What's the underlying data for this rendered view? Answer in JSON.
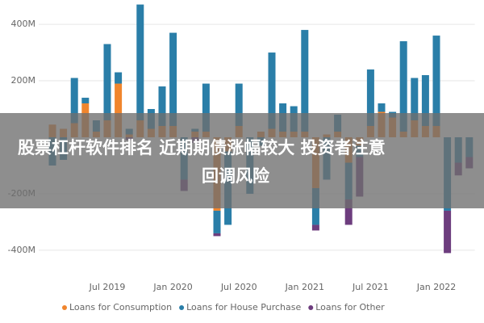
{
  "chart_data": {
    "type": "bar",
    "stacked": true,
    "categories": [
      null,
      null,
      null,
      null,
      null,
      "Jul 2019",
      null,
      null,
      null,
      null,
      null,
      "Jan 2020",
      null,
      null,
      null,
      null,
      null,
      "Jul 2020",
      null,
      null,
      null,
      null,
      null,
      "Jan 2021",
      null,
      null,
      null,
      null,
      null,
      "Jul 2021",
      null,
      null,
      null,
      null,
      null,
      "Jan 2022",
      null,
      null,
      null
    ],
    "series": [
      {
        "name": "Loans for Consumption",
        "color": "#f0852d",
        "values": [
          45,
          30,
          50,
          120,
          20,
          60,
          190,
          10,
          60,
          30,
          40,
          40,
          0,
          20,
          20,
          -260,
          -50,
          40,
          0,
          20,
          30,
          20,
          20,
          20,
          -180,
          10,
          20,
          -90,
          -30,
          40,
          90,
          70,
          20,
          60,
          40,
          40,
          0,
          0,
          0
        ]
      },
      {
        "name": "Loans for House Purchase",
        "color": "#2a7ea8",
        "values": [
          -100,
          -80,
          160,
          20,
          40,
          270,
          40,
          20,
          410,
          70,
          140,
          330,
          -150,
          10,
          170,
          -80,
          -260,
          150,
          -200,
          -30,
          270,
          100,
          90,
          360,
          -130,
          -150,
          60,
          -130,
          -40,
          200,
          30,
          20,
          320,
          150,
          180,
          320,
          -260,
          -90,
          -70
        ]
      },
      {
        "name": "Loans for Other",
        "color": "#6d3d7e",
        "values": [
          0,
          0,
          0,
          0,
          0,
          0,
          0,
          -10,
          0,
          0,
          0,
          0,
          -40,
          -20,
          0,
          -10,
          0,
          0,
          0,
          0,
          0,
          0,
          0,
          0,
          -20,
          0,
          0,
          -90,
          -140,
          0,
          0,
          0,
          0,
          0,
          0,
          0,
          -150,
          -45,
          -40
        ]
      }
    ],
    "ylim": [
      -486,
      486
    ],
    "yticks": [
      {
        "value": 400,
        "label": "400M"
      },
      {
        "value": 200,
        "label": "200M"
      },
      {
        "value": -200,
        "label": "-200M"
      },
      {
        "value": -400,
        "label": "-400M"
      }
    ],
    "grid": true,
    "legend": "bottom"
  },
  "overlay_text": [
    "股票杠杆软件排名 近期期债涨幅较大 投资者注意",
    "回调风险"
  ]
}
